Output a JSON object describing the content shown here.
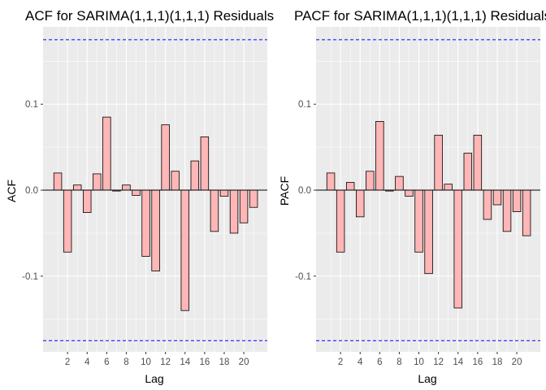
{
  "chart_data": [
    {
      "type": "bar",
      "title": "ACF for SARIMA(1,1,1)(1,1,1) Residuals",
      "xlabel": "Lag",
      "ylabel": "ACF",
      "x": [
        1,
        2,
        3,
        4,
        5,
        6,
        7,
        8,
        9,
        10,
        11,
        12,
        13,
        14,
        15,
        16,
        17,
        18,
        19,
        20,
        21
      ],
      "values": [
        0.02,
        -0.072,
        0.006,
        -0.026,
        0.019,
        0.085,
        -0.001,
        0.006,
        -0.006,
        -0.077,
        -0.094,
        0.076,
        0.022,
        -0.14,
        0.034,
        0.062,
        -0.048,
        -0.007,
        -0.05,
        -0.038,
        -0.02
      ],
      "xticks": [
        2,
        4,
        6,
        8,
        10,
        12,
        14,
        16,
        18,
        20
      ],
      "xlim": [
        -0.5,
        22.4
      ],
      "yticks": [
        -0.1,
        0.0,
        0.1
      ],
      "ytick_labels": [
        "-0.1",
        "0.0",
        "0.1"
      ],
      "ylim": [
        -0.188,
        0.19
      ],
      "confidence_bound": 0.175,
      "grid": true,
      "colors": {
        "bar_fill": "#ffb6b6",
        "bar_stroke": "#000000",
        "bound_line": "#0000ff",
        "panel_bg": "#ebebeb",
        "grid": "#ffffff"
      }
    },
    {
      "type": "bar",
      "title": "PACF for SARIMA(1,1,1)(1,1,1) Residuals",
      "xlabel": "Lag",
      "ylabel": "PACF",
      "x": [
        1,
        2,
        3,
        4,
        5,
        6,
        7,
        8,
        9,
        10,
        11,
        12,
        13,
        14,
        15,
        16,
        17,
        18,
        19,
        20,
        21
      ],
      "values": [
        0.02,
        -0.072,
        0.009,
        -0.031,
        0.022,
        0.08,
        -0.001,
        0.016,
        -0.007,
        -0.072,
        -0.097,
        0.064,
        0.007,
        -0.137,
        0.043,
        0.064,
        -0.034,
        -0.017,
        -0.048,
        -0.025,
        -0.053
      ],
      "xticks": [
        2,
        4,
        6,
        8,
        10,
        12,
        14,
        16,
        18,
        20
      ],
      "xlim": [
        -0.5,
        22.4
      ],
      "yticks": [
        -0.1,
        0.0,
        0.1
      ],
      "ytick_labels": [
        "-0.1",
        "0.0",
        "0.1"
      ],
      "ylim": [
        -0.188,
        0.19
      ],
      "confidence_bound": 0.175,
      "grid": true,
      "colors": {
        "bar_fill": "#ffb6b6",
        "bar_stroke": "#000000",
        "bound_line": "#0000ff",
        "panel_bg": "#ebebeb",
        "grid": "#ffffff"
      }
    }
  ]
}
